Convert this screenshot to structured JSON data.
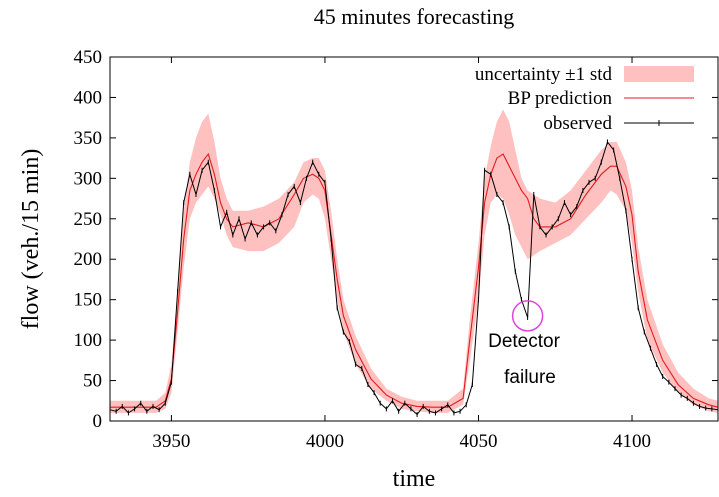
{
  "chart_data": {
    "type": "line",
    "title": "45 minutes forecasting",
    "xlabel": "time",
    "ylabel": "flow (veh./15 min)",
    "xlim": [
      3930,
      4128
    ],
    "ylim": [
      0,
      450
    ],
    "xticks": [
      3950,
      4000,
      4050,
      4100
    ],
    "yticks": [
      0,
      50,
      100,
      150,
      200,
      250,
      300,
      350,
      400,
      450
    ],
    "grid": false,
    "legend_position": "top-right",
    "colors": {
      "band": "#ffc0c0",
      "prediction": "#e41a1c",
      "observed": "#000000",
      "circle": "#dd44dd"
    },
    "series": [
      {
        "name": "uncertainty ±1 std",
        "kind": "band",
        "x": [
          3930,
          3935,
          3940,
          3945,
          3948,
          3950,
          3952,
          3954,
          3956,
          3958,
          3960,
          3962,
          3964,
          3966,
          3968,
          3970,
          3975,
          3980,
          3985,
          3990,
          3993,
          3996,
          3998,
          4000,
          4002,
          4004,
          4006,
          4010,
          4015,
          4020,
          4025,
          4030,
          4035,
          4040,
          4045,
          4047,
          4050,
          4052,
          4054,
          4056,
          4058,
          4060,
          4062,
          4064,
          4066,
          4068,
          4070,
          4075,
          4080,
          4085,
          4090,
          4093,
          4095,
          4098,
          4100,
          4102,
          4105,
          4110,
          4115,
          4120,
          4125,
          4128
        ],
        "lower": [
          10,
          10,
          10,
          10,
          15,
          35,
          110,
          190,
          250,
          270,
          280,
          290,
          275,
          255,
          230,
          215,
          210,
          210,
          220,
          240,
          270,
          280,
          275,
          250,
          200,
          150,
          110,
          70,
          40,
          25,
          15,
          12,
          10,
          10,
          20,
          70,
          150,
          230,
          270,
          280,
          275,
          255,
          230,
          215,
          200,
          205,
          210,
          220,
          230,
          250,
          270,
          285,
          280,
          260,
          220,
          160,
          100,
          60,
          35,
          20,
          12,
          10
        ],
        "upper": [
          25,
          25,
          25,
          25,
          35,
          70,
          160,
          260,
          320,
          350,
          370,
          380,
          345,
          300,
          275,
          260,
          260,
          265,
          275,
          295,
          320,
          325,
          325,
          310,
          260,
          200,
          150,
          105,
          65,
          40,
          30,
          25,
          25,
          25,
          40,
          120,
          220,
          300,
          340,
          370,
          385,
          370,
          335,
          300,
          285,
          280,
          275,
          270,
          285,
          310,
          335,
          345,
          345,
          320,
          285,
          215,
          150,
          95,
          60,
          40,
          28,
          25
        ]
      },
      {
        "name": "BP prediction",
        "kind": "line",
        "x": [
          3930,
          3935,
          3940,
          3945,
          3948,
          3950,
          3952,
          3954,
          3956,
          3958,
          3960,
          3962,
          3964,
          3966,
          3968,
          3970,
          3975,
          3980,
          3985,
          3990,
          3993,
          3996,
          3998,
          4000,
          4002,
          4004,
          4006,
          4010,
          4015,
          4020,
          4025,
          4030,
          4035,
          4040,
          4045,
          4047,
          4050,
          4052,
          4054,
          4056,
          4058,
          4060,
          4062,
          4064,
          4066,
          4068,
          4070,
          4075,
          4080,
          4085,
          4090,
          4093,
          4095,
          4098,
          4100,
          4102,
          4105,
          4110,
          4115,
          4120,
          4125,
          4128
        ],
        "values": [
          17,
          17,
          17,
          17,
          25,
          52,
          135,
          225,
          285,
          305,
          320,
          330,
          305,
          270,
          250,
          240,
          245,
          240,
          250,
          280,
          300,
          305,
          300,
          285,
          230,
          175,
          130,
          88,
          52,
          32,
          22,
          18,
          17,
          17,
          28,
          95,
          190,
          270,
          305,
          325,
          330,
          315,
          300,
          285,
          275,
          250,
          240,
          240,
          250,
          280,
          305,
          315,
          315,
          290,
          255,
          185,
          125,
          75,
          45,
          28,
          20,
          17
        ]
      },
      {
        "name": "observed",
        "kind": "line-markers",
        "x": [
          3930,
          3932,
          3934,
          3936,
          3938,
          3940,
          3942,
          3944,
          3946,
          3948,
          3950,
          3952,
          3954,
          3956,
          3958,
          3960,
          3962,
          3964,
          3966,
          3968,
          3970,
          3972,
          3974,
          3976,
          3978,
          3980,
          3982,
          3984,
          3986,
          3988,
          3990,
          3992,
          3994,
          3996,
          3998,
          4000,
          4002,
          4004,
          4006,
          4008,
          4010,
          4012,
          4014,
          4016,
          4018,
          4020,
          4022,
          4024,
          4026,
          4028,
          4030,
          4032,
          4034,
          4036,
          4038,
          4040,
          4042,
          4044,
          4046,
          4048,
          4050,
          4052,
          4054,
          4056,
          4058,
          4060,
          4062,
          4064,
          4066,
          4068,
          4070,
          4072,
          4074,
          4076,
          4078,
          4080,
          4082,
          4084,
          4086,
          4088,
          4090,
          4092,
          4094,
          4096,
          4098,
          4100,
          4102,
          4104,
          4106,
          4108,
          4110,
          4112,
          4114,
          4116,
          4118,
          4120,
          4122,
          4124,
          4126,
          4128
        ],
        "values": [
          14,
          12,
          18,
          10,
          15,
          22,
          12,
          18,
          14,
          22,
          48,
          160,
          270,
          305,
          280,
          310,
          320,
          285,
          240,
          258,
          230,
          250,
          225,
          245,
          230,
          240,
          245,
          235,
          255,
          280,
          290,
          270,
          300,
          320,
          305,
          295,
          225,
          140,
          110,
          98,
          70,
          65,
          45,
          35,
          22,
          15,
          25,
          12,
          22,
          15,
          8,
          18,
          12,
          10,
          15,
          20,
          10,
          12,
          20,
          45,
          150,
          310,
          305,
          280,
          270,
          240,
          185,
          150,
          128,
          280,
          240,
          230,
          240,
          250,
          270,
          255,
          265,
          285,
          295,
          300,
          320,
          345,
          335,
          300,
          260,
          200,
          140,
          110,
          90,
          70,
          55,
          48,
          40,
          32,
          28,
          22,
          18,
          16,
          15,
          14
        ]
      }
    ],
    "annotations": [
      {
        "x": 4066,
        "y": 130,
        "line1": "Detector",
        "line2": "failure"
      }
    ]
  }
}
